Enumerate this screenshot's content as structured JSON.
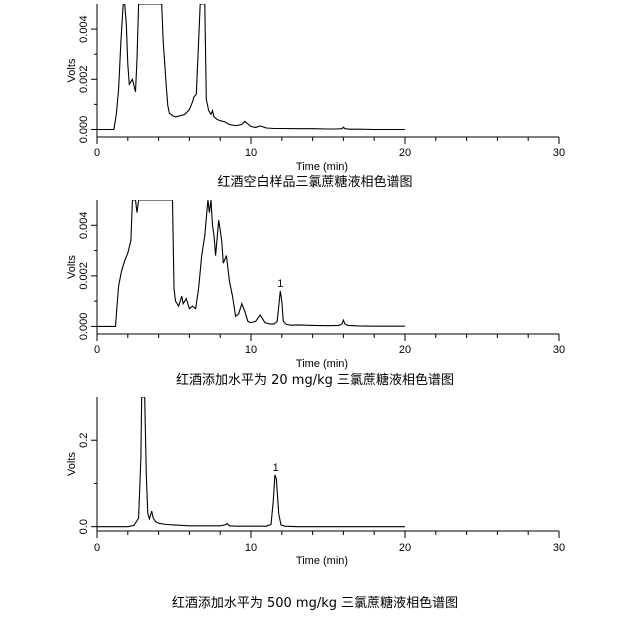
{
  "chart_data": [
    {
      "type": "line",
      "caption": "红酒空白样品三氯蔗糖液相色谱图",
      "xlabel": "Time (min)",
      "ylabel": "Volts",
      "xlim": [
        0,
        30
      ],
      "ylim": [
        -0.0003,
        0.005
      ],
      "x_ticks": [
        "0",
        "10",
        "20",
        "30"
      ],
      "y_ticks": [
        {
          "value": 0.0,
          "label": "0.000"
        },
        {
          "value": 0.002,
          "label": "0.002"
        },
        {
          "value": 0.004,
          "label": "0.004"
        }
      ],
      "annotations": [],
      "series": [
        {
          "x": [
            0,
            1.1,
            1.25,
            1.4,
            1.55,
            1.7,
            1.8,
            1.9,
            2.0,
            2.1,
            2.3,
            2.5,
            2.6,
            2.7,
            2.8,
            2.9,
            3.0,
            4.2,
            4.3,
            4.4,
            4.5,
            4.6,
            4.7,
            4.9,
            5.1,
            5.4,
            5.7,
            6.0,
            6.2,
            6.3,
            6.45,
            6.6,
            6.7,
            6.8,
            7.0,
            7.1,
            7.25,
            7.4,
            7.5,
            7.6,
            7.8,
            8.0,
            8.3,
            8.6,
            9.0,
            9.4,
            9.6,
            10.0,
            10.3,
            10.6,
            11.0,
            11.5,
            12.0,
            13.0,
            14.0,
            15.0,
            15.5,
            15.9,
            16.0,
            16.1,
            16.4,
            17.0,
            18.0,
            19.0,
            20.0
          ],
          "y": [
            0.0,
            0.0,
            0.0006,
            0.0016,
            0.0035,
            0.005,
            0.005,
            0.0042,
            0.0026,
            0.0018,
            0.002,
            0.0015,
            0.0028,
            0.005,
            0.005,
            0.005,
            0.005,
            0.005,
            0.0035,
            0.0026,
            0.0017,
            0.00095,
            0.00065,
            0.00055,
            0.0005,
            0.00055,
            0.0006,
            0.0008,
            0.0011,
            0.0013,
            0.0014,
            0.0035,
            0.005,
            0.005,
            0.005,
            0.0012,
            0.00075,
            0.0006,
            0.00075,
            0.0005,
            0.0004,
            0.00035,
            0.0003,
            0.0002,
            0.00015,
            0.0002,
            0.00032,
            0.00012,
            8e-05,
            0.00014,
            6e-05,
            4e-05,
            4e-05,
            3e-05,
            3e-05,
            2e-05,
            2e-05,
            3e-05,
            9e-05,
            3e-05,
            1e-05,
            1e-05,
            0.0,
            0.0,
            0.0
          ]
        }
      ]
    },
    {
      "type": "line",
      "caption": "红酒添加水平为 20 mg/kg 三氯蔗糖液相色谱图",
      "xlabel": "Time (min)",
      "ylabel": "Volts",
      "xlim": [
        0,
        30
      ],
      "ylim": [
        -0.0003,
        0.005
      ],
      "x_ticks": [
        "0",
        "10",
        "20",
        "30"
      ],
      "y_ticks": [
        {
          "value": 0.0,
          "label": "0.000"
        },
        {
          "value": 0.002,
          "label": "0.002"
        },
        {
          "value": 0.004,
          "label": "0.004"
        }
      ],
      "annotations": [
        {
          "text": "1",
          "x": 11.9,
          "y": 0.0014
        }
      ],
      "series": [
        {
          "x": [
            0,
            1.2,
            1.3,
            1.4,
            1.6,
            1.8,
            2.0,
            2.2,
            2.3,
            2.4,
            2.5,
            2.6,
            2.7,
            4.9,
            5.0,
            5.1,
            5.3,
            5.5,
            5.6,
            5.8,
            6.0,
            6.2,
            6.4,
            6.6,
            6.8,
            7.0,
            7.2,
            7.3,
            7.4,
            7.5,
            7.6,
            7.7,
            7.9,
            8.1,
            8.2,
            8.4,
            8.6,
            8.8,
            9.0,
            9.2,
            9.4,
            9.6,
            9.8,
            10.0,
            10.3,
            10.6,
            10.9,
            11.2,
            11.5,
            11.7,
            11.9,
            12.0,
            12.1,
            12.3,
            12.6,
            13.0,
            14.0,
            15.0,
            15.7,
            15.9,
            16.0,
            16.1,
            16.3,
            17.0,
            18.0,
            19.0,
            20.0
          ],
          "y": [
            0.0,
            0.0,
            0.0008,
            0.0016,
            0.0022,
            0.0026,
            0.0029,
            0.0034,
            0.005,
            0.005,
            0.005,
            0.0045,
            0.005,
            0.005,
            0.0015,
            0.001,
            0.0008,
            0.0012,
            0.0009,
            0.0011,
            0.0007,
            0.0008,
            0.0007,
            0.0015,
            0.0028,
            0.0036,
            0.005,
            0.0045,
            0.005,
            0.004,
            0.0036,
            0.0028,
            0.0042,
            0.0034,
            0.0025,
            0.0028,
            0.0018,
            0.0012,
            0.0004,
            0.0005,
            0.0009,
            0.0006,
            0.0002,
            0.00015,
            0.0002,
            0.00045,
            0.00015,
            0.0001,
            0.0001,
            0.0002,
            0.0014,
            0.001,
            0.0002,
            8e-05,
            5e-05,
            6e-05,
            4e-05,
            3e-05,
            4e-05,
            0.0001,
            0.00025,
            0.0001,
            4e-05,
            2e-05,
            1e-05,
            1e-05,
            1e-05
          ]
        }
      ]
    },
    {
      "type": "line",
      "caption": "红酒添加水平为 500 mg/kg 三氯蔗糖液相色谱图",
      "xlabel": "Time (min)",
      "ylabel": "Volts",
      "xlim": [
        0,
        30
      ],
      "ylim": [
        -0.01,
        0.3
      ],
      "x_ticks": [
        "0",
        "10",
        "20",
        "30"
      ],
      "y_ticks": [
        {
          "value": 0.0,
          "label": "0.0"
        },
        {
          "value": 0.2,
          "label": "0.2"
        }
      ],
      "annotations": [
        {
          "text": "1",
          "x": 11.6,
          "y": 0.12
        }
      ],
      "series": [
        {
          "x": [
            0,
            2.0,
            2.4,
            2.7,
            2.85,
            2.9,
            3.05,
            3.1,
            3.2,
            3.3,
            3.4,
            3.55,
            3.65,
            3.8,
            4.0,
            4.5,
            5.0,
            6.0,
            7.0,
            8.0,
            8.3,
            8.45,
            8.6,
            9.0,
            10.0,
            11.0,
            11.3,
            11.45,
            11.55,
            11.65,
            11.8,
            11.95,
            12.2,
            13.0,
            15.0,
            17.0,
            20.0
          ],
          "y": [
            0.0,
            0.0,
            0.003,
            0.02,
            0.16,
            0.3,
            0.3,
            0.3,
            0.12,
            0.03,
            0.018,
            0.036,
            0.02,
            0.012,
            0.008,
            0.005,
            0.004,
            0.002,
            0.002,
            0.002,
            0.004,
            0.007,
            0.002,
            0.001,
            0.001,
            0.001,
            0.005,
            0.06,
            0.12,
            0.11,
            0.03,
            0.004,
            0.001,
            0.0,
            0.0,
            0.0,
            0.0
          ]
        }
      ]
    }
  ]
}
